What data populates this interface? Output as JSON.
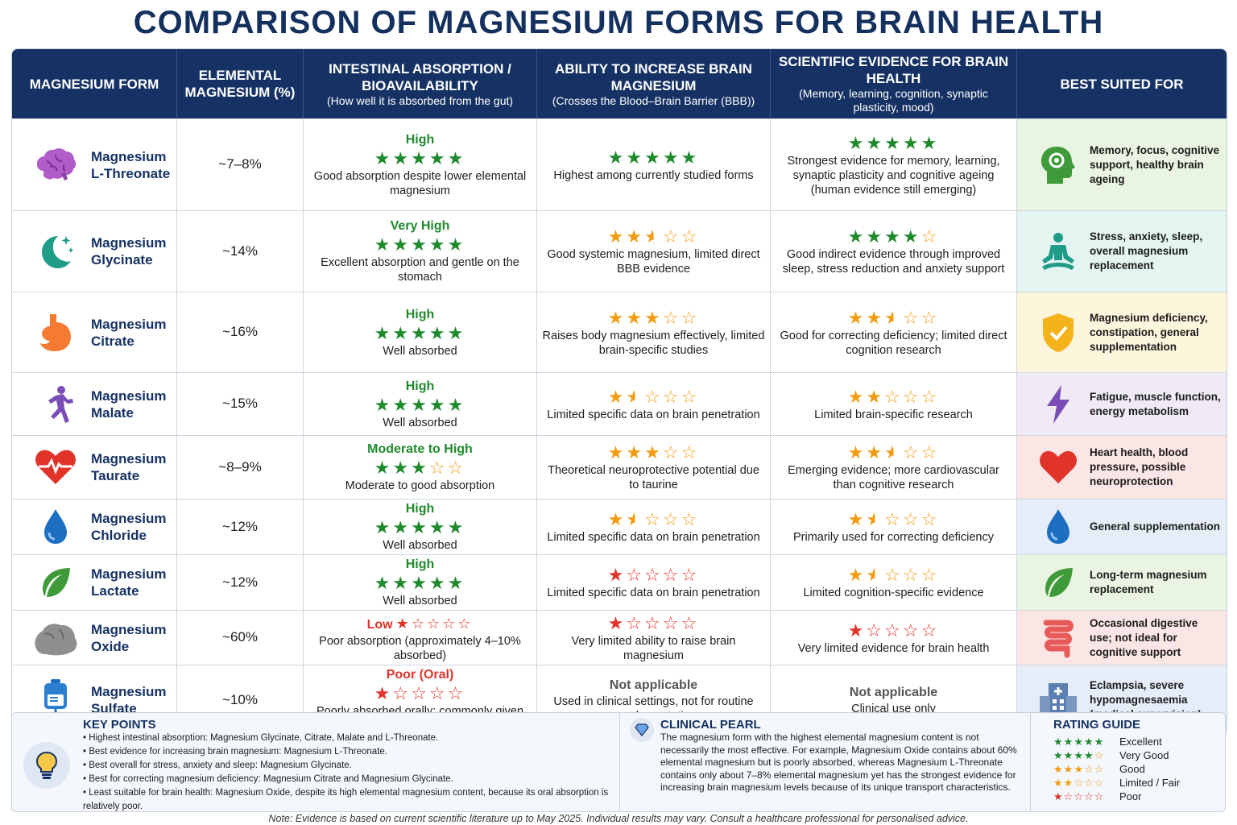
{
  "title": "COMPARISON OF MAGNESIUM FORMS FOR BRAIN HEALTH",
  "headers": {
    "form": "MAGNESIUM FORM",
    "elemental": "ELEMENTAL MAGNESIUM (%)",
    "absorption": "INTESTINAL ABSORPTION / BIOAVAILABILITY",
    "absorption_sub": "(How well it is absorbed from the gut)",
    "brain": "ABILITY TO INCREASE BRAIN MAGNESIUM",
    "brain_sub": "(Crosses the Blood–Brain Barrier (BBB))",
    "evidence": "SCIENTIFIC EVIDENCE FOR BRAIN HEALTH",
    "evidence_sub": "(Memory, learning, cognition, synaptic plasticity, mood)",
    "best": "BEST SUITED FOR"
  },
  "rows": [
    {
      "name": "Magnesium L-Threonate",
      "icon": "brain-icon",
      "elemental": "~7–8%",
      "abs_level": "High",
      "abs_stars": 5,
      "abs_text": "Good absorption despite lower elemental magnesium",
      "brain_stars": 5,
      "brain_text": "Highest among currently studied forms",
      "ev_stars": 5,
      "ev_text": "Strongest evidence for memory, learning, synaptic plasticity and cognitive ageing (human evidence still emerging)",
      "best": "Memory, focus, cognitive support, healthy brain ageing",
      "best_icon": "head-gear-icon",
      "bg": "#eaf4e2"
    },
    {
      "name": "Magnesium Glycinate",
      "icon": "moon-icon",
      "elemental": "~14%",
      "abs_level": "Very High",
      "abs_stars": 5,
      "abs_text": "Excellent absorption and gentle on the stomach",
      "brain_stars": 2.5,
      "brain_text": "Good systemic magnesium, limited direct BBB evidence",
      "ev_stars": 4,
      "ev_text": "Good indirect evidence through improved sleep, stress reduction and anxiety support",
      "best": "Stress, anxiety, sleep, overall magnesium replacement",
      "best_icon": "meditation-icon",
      "bg": "#e3f4f1"
    },
    {
      "name": "Magnesium Citrate",
      "icon": "stomach-icon",
      "elemental": "~16%",
      "abs_level": "High",
      "abs_stars": 5,
      "abs_text": "Well absorbed",
      "brain_stars": 3,
      "brain_text": "Raises body magnesium effectively, limited brain-specific studies",
      "ev_stars": 2.5,
      "ev_text": "Good for correcting deficiency; limited direct cognition research",
      "best": "Magnesium deficiency, constipation, general supplementation",
      "best_icon": "shield-check-icon",
      "bg": "#fdf5dc"
    },
    {
      "name": "Magnesium Malate",
      "icon": "runner-icon",
      "elemental": "~15%",
      "abs_level": "High",
      "abs_stars": 5,
      "abs_text": "Well absorbed",
      "brain_stars": 1.5,
      "brain_text": "Limited specific data on brain penetration",
      "ev_stars": 2,
      "ev_text": "Limited brain-specific research",
      "best": "Fatigue, muscle function, energy metabolism",
      "best_icon": "lightning-icon",
      "bg": "#efeaf6"
    },
    {
      "name": "Magnesium Taurate",
      "icon": "heart-pulse-icon",
      "elemental": "~8–9%",
      "abs_level": "Moderate to High",
      "abs_stars": 3,
      "abs_text": "Moderate to good absorption",
      "brain_stars": 3,
      "brain_text": "Theoretical neuroprotective potential due to taurine",
      "ev_stars": 2.5,
      "ev_text": "Emerging evidence; more cardiovascular than cognitive research",
      "best": "Heart health, blood pressure, possible neuroprotection",
      "best_icon": "heart-icon",
      "bg": "#fbe5e5"
    },
    {
      "name": "Magnesium Chloride",
      "icon": "droplet-icon",
      "elemental": "~12%",
      "abs_level": "High",
      "abs_stars": 5,
      "abs_text": "Well absorbed",
      "brain_stars": 1.5,
      "brain_text": "Limited specific data on brain penetration",
      "ev_stars": 1.5,
      "ev_text": "Primarily used for correcting deficiency",
      "best": "General supplementation",
      "best_icon": "droplet-icon",
      "bg": "#e5eef8"
    },
    {
      "name": "Magnesium Lactate",
      "icon": "leaf-icon",
      "elemental": "~12%",
      "abs_level": "High",
      "abs_stars": 5,
      "abs_text": "Well absorbed",
      "brain_stars": 1,
      "brain_text": "Limited specific data on brain penetration",
      "ev_stars": 1.5,
      "ev_text": "Limited cognition-specific evidence",
      "best": "Long-term magnesium replacement",
      "best_icon": "leaf-icon",
      "bg": "#eaf4e2"
    },
    {
      "name": "Magnesium Oxide",
      "icon": "rock-icon",
      "elemental": "~60%",
      "abs_level": "Low",
      "abs_stars": 1,
      "abs_text": "Poor absorption (approximately 4–10% absorbed)",
      "brain_stars": 1,
      "brain_text": "Very limited ability to raise brain magnesium",
      "ev_stars": 1,
      "ev_text": "Very limited evidence for brain health",
      "best": "Occasional digestive use; not ideal for cognitive support",
      "best_icon": "intestine-icon",
      "bg": "#fbe5e5"
    },
    {
      "name": "Magnesium Sulfate",
      "icon": "iv-bag-icon",
      "elemental": "~10%",
      "abs_level": "Poor (Oral)",
      "abs_stars": 1,
      "abs_text": "Poorly absorbed orally; commonly given intravenously",
      "brain_stars": 0,
      "brain_text": "Used in clinical settings, not for routine supplementation",
      "brain_na": "Not applicable",
      "ev_stars": 0,
      "ev_text": "Clinical use only",
      "ev_na": "Not applicable",
      "best": "Eclampsia, severe hypomagnesaemia (medical supervision)",
      "best_icon": "hospital-icon",
      "bg": "#e5eef8"
    }
  ],
  "key_points": {
    "title": "KEY POINTS",
    "items": [
      {
        "label": "Highest intestinal absorption:",
        "text": " Magnesium Glycinate, Citrate, Malate and L-Threonate."
      },
      {
        "label": "Best evidence for increasing brain magnesium:",
        "text": " Magnesium L-Threonate."
      },
      {
        "label": "Best overall for stress, anxiety and sleep:",
        "text": " Magnesium Glycinate."
      },
      {
        "label": "Best for correcting magnesium deficiency:",
        "text": " Magnesium Citrate and Magnesium Glycinate."
      },
      {
        "label": "Least suitable for brain health:",
        "text": " Magnesium Oxide, despite its high elemental magnesium content, because its oral absorption is relatively poor."
      }
    ]
  },
  "clinical_pearl": {
    "title": "CLINICAL PEARL",
    "text": "The magnesium form with the highest elemental magnesium content is not necessarily the most effective. For example, Magnesium Oxide contains about 60% elemental magnesium but is poorly absorbed, whereas Magnesium L-Threonate contains only about 7–8% elemental magnesium yet has the strongest evidence for increasing brain magnesium levels because of its unique transport characteristics."
  },
  "rating_guide": {
    "title": "RATING GUIDE",
    "items": [
      {
        "stars": 5,
        "label": "Excellent"
      },
      {
        "stars": 4,
        "label": "Very Good"
      },
      {
        "stars": 3,
        "label": "Good"
      },
      {
        "stars": 2,
        "label": "Limited / Fair"
      },
      {
        "stars": 1,
        "label": "Poor"
      }
    ]
  },
  "note": "Note: Evidence is based on current scientific literature up to May 2025. Individual results may vary. Consult a healthcare professional for personalised advice.",
  "colors": {
    "navy": "#163264",
    "green": "#1f8a2c",
    "orange": "#f39c12",
    "red": "#e0342b"
  }
}
